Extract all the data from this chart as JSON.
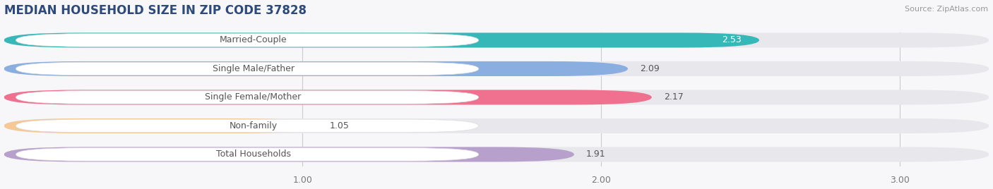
{
  "title": "MEDIAN HOUSEHOLD SIZE IN ZIP CODE 37828",
  "source": "Source: ZipAtlas.com",
  "categories": [
    "Married-Couple",
    "Single Male/Father",
    "Single Female/Mother",
    "Non-family",
    "Total Households"
  ],
  "values": [
    2.53,
    2.09,
    2.17,
    1.05,
    1.91
  ],
  "bar_colors": [
    "#36b8b8",
    "#8aaee0",
    "#f07090",
    "#f5c896",
    "#b8a0cc"
  ],
  "bar_bg_color": "#e8e8ec",
  "label_bg_color": "#ffffff",
  "background_color": "#f7f7f9",
  "xlim": [
    0.0,
    3.3
  ],
  "xticks": [
    1.0,
    2.0,
    3.0
  ],
  "title_fontsize": 12,
  "label_fontsize": 9,
  "value_fontsize": 9,
  "bar_height": 0.52,
  "title_color": "#2d4a7a",
  "source_color": "#999999",
  "label_text_color": "#555555",
  "value_text_color_dark": "#555555",
  "value_text_color_light": "#ffffff"
}
